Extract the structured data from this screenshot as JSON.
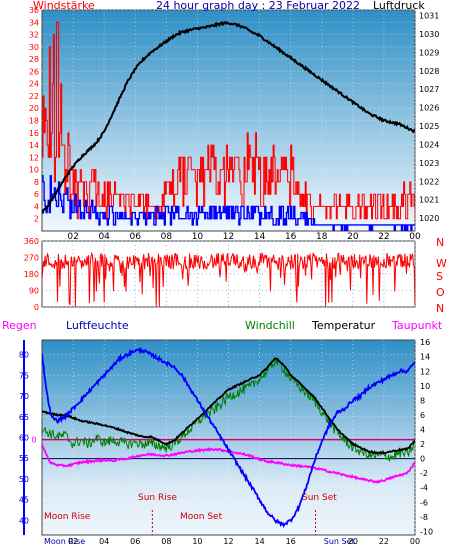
{
  "header": {
    "title": "24 hour graph day : 23 Februar 2022",
    "left_label": "Windstärke",
    "right_label": "Luftdruck"
  },
  "bottom_header": {
    "regen": "Regen",
    "luftfeuchte": "Luftfeuchte",
    "windchill": "Windchill",
    "temperatur": "Temperatur",
    "taupunkt": "Taupunkt"
  },
  "direction_letters": [
    "N",
    "W",
    "S",
    "O",
    "N"
  ],
  "annotations": {
    "moon_rise": "Moon Rise",
    "sun_rise": "Sun Rise",
    "moon_set": "Moon Set",
    "sun_set": "Sun Set",
    "bottom_left": "Moon Rise",
    "bottom_right": "Sun Set"
  },
  "colors": {
    "wind": "#ff0000",
    "gust": "#ff0000",
    "wind_avg": "#0000ff",
    "pressure": "#000000",
    "direction": "#ff0000",
    "humidity": "#0000ff",
    "temperature": "#000000",
    "windchill": "#008000",
    "dewpoint": "#ff00ff",
    "rain_axis": "#0000ff",
    "title": "#0000aa",
    "annot": "#cc0000"
  },
  "chart_data": [
    {
      "type": "line",
      "name": "wind-pressure",
      "x_ticks": [
        "02",
        "04",
        "06",
        "08",
        "10",
        "12",
        "14",
        "16",
        "18",
        "20",
        "22",
        "00"
      ],
      "y_left_ticks": [
        "2",
        "4",
        "6",
        "8",
        "10",
        "12",
        "14",
        "16",
        "18",
        "20",
        "22",
        "24",
        "26",
        "28",
        "30",
        "32",
        "34",
        "36"
      ],
      "y_left_top": "36",
      "y_right_ticks": [
        "1020",
        "1021",
        "1022",
        "1023",
        "1024",
        "1025",
        "1026",
        "1027",
        "1028",
        "1029",
        "1030",
        "1031"
      ],
      "ylim_left": [
        0,
        36
      ],
      "ylim_right": [
        1019.3,
        1031.3
      ],
      "xlim": [
        0,
        24
      ],
      "pressure": {
        "x": [
          0,
          0.5,
          1,
          1.5,
          2,
          2.5,
          3,
          3.5,
          4,
          4.5,
          5,
          5.5,
          6,
          6.5,
          7,
          7.5,
          8,
          8.5,
          9,
          9.5,
          10,
          10.5,
          11,
          11.5,
          12,
          12.5,
          13,
          13.5,
          14,
          14.5,
          15,
          15.5,
          16,
          16.5,
          17,
          17.5,
          18,
          18.5,
          19,
          19.5,
          20,
          20.5,
          21,
          21.5,
          22,
          22.5,
          23,
          23.5,
          24
        ],
        "y": [
          1020.3,
          1020.8,
          1021.5,
          1022.2,
          1022.8,
          1023.3,
          1023.7,
          1024.1,
          1024.7,
          1025.6,
          1026.5,
          1027.4,
          1028.1,
          1028.6,
          1029.0,
          1029.3,
          1029.6,
          1029.9,
          1030.1,
          1030.2,
          1030.3,
          1030.35,
          1030.45,
          1030.55,
          1030.6,
          1030.5,
          1030.35,
          1030.1,
          1029.9,
          1029.6,
          1029.3,
          1029.0,
          1028.7,
          1028.4,
          1028.1,
          1027.8,
          1027.5,
          1027.2,
          1026.9,
          1026.6,
          1026.3,
          1026.0,
          1025.7,
          1025.5,
          1025.3,
          1025.2,
          1025.1,
          1024.9,
          1024.7
        ]
      },
      "wind_gust_profile": {
        "x": [
          0,
          0.5,
          1,
          1.5,
          2,
          3,
          4,
          5,
          6,
          7,
          7.5,
          8,
          9,
          10,
          11,
          12,
          13,
          14,
          15,
          16,
          16.5,
          17,
          18,
          19,
          20,
          21,
          22,
          23,
          23.5,
          24
        ],
        "y": [
          14,
          22,
          24,
          16,
          10,
          9,
          7,
          6,
          5,
          5,
          4,
          8,
          10,
          10,
          11,
          10,
          12,
          12,
          10,
          11,
          8,
          6,
          4,
          5,
          5,
          5,
          5,
          5,
          7,
          6
        ]
      },
      "wind_avg_profile": {
        "x": [
          0,
          1,
          2,
          4,
          6,
          8,
          10,
          12,
          14,
          16,
          18,
          20,
          22,
          24
        ],
        "y": [
          6,
          6,
          4,
          3,
          2,
          3,
          3,
          3,
          3,
          3,
          1,
          1,
          1,
          1
        ]
      }
    },
    {
      "type": "scatter",
      "name": "wind-direction",
      "y_ticks": [
        "0",
        "90",
        "180",
        "270",
        "360"
      ],
      "ylim": [
        0,
        360
      ],
      "xlim": [
        0,
        24
      ],
      "x_ticks": [
        "02",
        "04",
        "06",
        "08",
        "10",
        "12",
        "14",
        "16",
        "18",
        "20",
        "22",
        "00"
      ],
      "typical_direction": 250
    },
    {
      "type": "line",
      "name": "temperature-humidity",
      "x_ticks": [
        "Moon Rise",
        "02",
        "04",
        "06",
        "08",
        "10",
        "12",
        "14",
        "16",
        "Sun Set",
        "20",
        "22",
        "00"
      ],
      "y_left_ticks": [
        "40",
        "45",
        "50",
        "55",
        "60",
        "65",
        "70",
        "75",
        "80"
      ],
      "ylim_left": [
        36.5,
        83.5
      ],
      "y_right_ticks": [
        "-10",
        "-8",
        "-6",
        "-4",
        "-2",
        "0",
        "2",
        "4",
        "6",
        "8",
        "10",
        "12",
        "14",
        "16"
      ],
      "ylim_right": [
        -10.5,
        16.3
      ],
      "rain_value": "0",
      "xlim": [
        0,
        24
      ],
      "humidity": {
        "x": [
          0,
          0.3,
          0.6,
          1,
          1.5,
          2,
          2.5,
          3,
          3.5,
          4,
          4.5,
          5,
          5.5,
          6,
          6.5,
          7,
          7.5,
          8,
          8.5,
          9,
          9.5,
          10,
          10.5,
          11,
          11.5,
          12,
          12.5,
          13,
          13.5,
          14,
          14.5,
          15,
          15.5,
          16,
          16.5,
          17,
          17.5,
          18,
          18.5,
          19,
          19.5,
          20,
          20.5,
          21,
          21.5,
          22,
          22.5,
          23,
          23.5,
          24
        ],
        "y": [
          80,
          71,
          65,
          64,
          65,
          67,
          69,
          71,
          73,
          75,
          77,
          79,
          80,
          81,
          81,
          80,
          79,
          78,
          77,
          75,
          72,
          69,
          66,
          63,
          60,
          57,
          54,
          51,
          48,
          45,
          42,
          40,
          39,
          40,
          43,
          48,
          54,
          59,
          63,
          66,
          67,
          69,
          70,
          72,
          73,
          74,
          75,
          76,
          76,
          78
        ]
      },
      "temperature": {
        "x": [
          0,
          0.5,
          1,
          1.5,
          2,
          2.5,
          3,
          3.5,
          4,
          4.5,
          5,
          5.5,
          6,
          6.5,
          7,
          7.5,
          8,
          8.5,
          9,
          9.5,
          10,
          10.5,
          11,
          11.5,
          12,
          12.5,
          13,
          13.5,
          14,
          14.5,
          15,
          15.5,
          16,
          16.5,
          17,
          17.5,
          18,
          18.5,
          19,
          19.5,
          20,
          20.5,
          21,
          21.5,
          22,
          22.5,
          23,
          23.5,
          24
        ],
        "y": [
          6.5,
          6.2,
          6.0,
          6.0,
          5.6,
          5.2,
          5.0,
          4.8,
          4.6,
          4.3,
          4.0,
          3.6,
          3.3,
          3.0,
          3.0,
          2.5,
          2.0,
          2.5,
          3.5,
          4.5,
          5.5,
          6.5,
          7.5,
          8.5,
          9.5,
          10.0,
          10.5,
          11.0,
          11.5,
          12.5,
          13.8,
          13.0,
          11.5,
          10.5,
          9.5,
          8.5,
          7.0,
          5.5,
          4.0,
          3.0,
          2.0,
          1.5,
          1.0,
          0.8,
          0.8,
          1.0,
          1.2,
          1.3,
          2.5
        ]
      },
      "windchill": {
        "x": [
          0,
          0.5,
          1,
          1.5,
          2,
          2.5,
          3,
          3.5,
          4,
          4.5,
          5,
          5.5,
          6,
          6.5,
          7,
          7.5,
          8,
          8.5,
          9,
          9.5,
          10,
          10.5,
          11,
          11.5,
          12,
          12.5,
          13,
          13.5,
          14,
          14.5,
          15,
          15.5,
          16,
          16.5,
          17,
          17.5,
          18,
          18.5,
          19,
          19.5,
          20,
          20.5,
          21,
          21.5,
          22,
          22.5,
          23,
          23.5,
          24
        ],
        "y": [
          4.0,
          3.5,
          3.0,
          3.2,
          2.0,
          2.5,
          2.0,
          2.8,
          2.2,
          2.5,
          2.3,
          2.0,
          2.2,
          2.0,
          2.0,
          1.8,
          1.5,
          2.0,
          3.0,
          4.0,
          5.0,
          6.0,
          6.5,
          7.5,
          8.5,
          9.0,
          9.5,
          10.0,
          11.0,
          12.0,
          13.5,
          12.5,
          11.0,
          10.0,
          9.0,
          8.0,
          6.5,
          5.0,
          3.5,
          2.5,
          1.5,
          1.0,
          0.5,
          0.3,
          0.5,
          0.2,
          0.8,
          0.6,
          2.0
        ]
      },
      "dewpoint": {
        "x": [
          0,
          0.5,
          1,
          1.5,
          2,
          2.5,
          3,
          3.5,
          4,
          4.5,
          5,
          5.5,
          6,
          6.5,
          7,
          7.5,
          8,
          8.5,
          9,
          9.5,
          10,
          10.5,
          11,
          11.5,
          12,
          12.5,
          13,
          13.5,
          14,
          14.5,
          15,
          15.5,
          16,
          16.5,
          17,
          17.5,
          18,
          18.5,
          19,
          19.5,
          20,
          20.5,
          21,
          21.5,
          22,
          22.5,
          23,
          23.5,
          24
        ],
        "y": [
          2.0,
          -0.5,
          -0.9,
          -1.0,
          -0.8,
          -0.5,
          -0.4,
          -0.3,
          -0.2,
          -0.3,
          -0.1,
          0.0,
          0.3,
          0.5,
          0.6,
          0.5,
          0.4,
          0.6,
          0.8,
          1.0,
          1.1,
          1.2,
          1.3,
          1.2,
          1.0,
          0.8,
          0.6,
          0.3,
          -0.1,
          -0.4,
          -0.5,
          -0.7,
          -0.9,
          -1.0,
          -1.1,
          -1.3,
          -1.5,
          -1.8,
          -2.0,
          -2.3,
          -2.5,
          -2.8,
          -3.0,
          -3.2,
          -3.0,
          -2.6,
          -2.3,
          -2.0,
          -0.5
        ]
      }
    }
  ]
}
